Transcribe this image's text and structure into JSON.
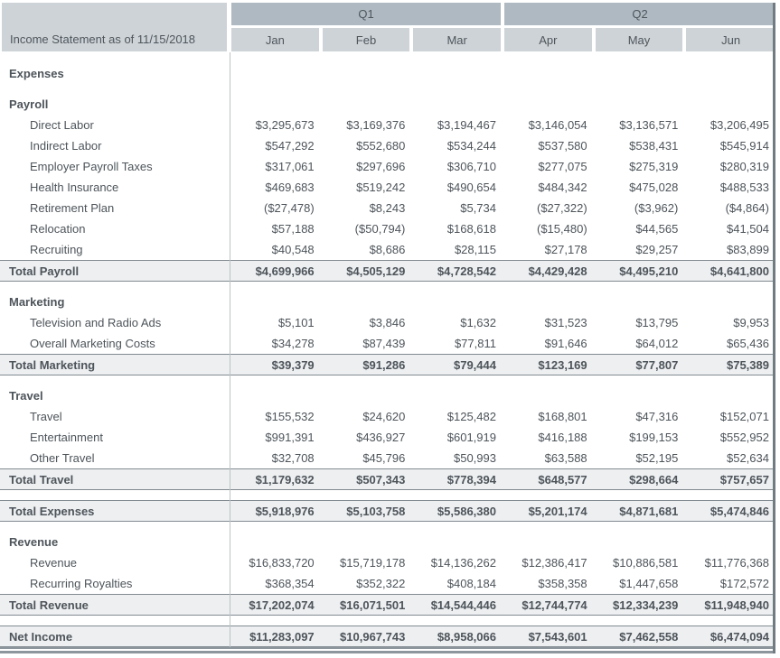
{
  "table": {
    "corner_label": "Income Statement as of 11/15/2018",
    "quarters": [
      {
        "label": "Q1"
      },
      {
        "label": "Q2"
      }
    ],
    "months": [
      "Jan",
      "Feb",
      "Mar",
      "Apr",
      "May",
      "Jun"
    ],
    "rows": [
      {
        "type": "section",
        "label": "Expenses"
      },
      {
        "type": "gap"
      },
      {
        "type": "section",
        "label": "Payroll"
      },
      {
        "type": "item",
        "label": "Direct Labor",
        "values": [
          "$3,295,673",
          "$3,169,376",
          "$3,194,467",
          "$3,146,054",
          "$3,136,571",
          "$3,206,495"
        ]
      },
      {
        "type": "item",
        "label": "Indirect Labor",
        "values": [
          "$547,292",
          "$552,680",
          "$534,244",
          "$537,580",
          "$538,431",
          "$545,914"
        ]
      },
      {
        "type": "item",
        "label": "Employer Payroll Taxes",
        "values": [
          "$317,061",
          "$297,696",
          "$306,710",
          "$277,075",
          "$275,319",
          "$280,319"
        ]
      },
      {
        "type": "item",
        "label": "Health Insurance",
        "values": [
          "$469,683",
          "$519,242",
          "$490,654",
          "$484,342",
          "$475,028",
          "$488,533"
        ]
      },
      {
        "type": "item",
        "label": "Retirement Plan",
        "values": [
          "($27,478)",
          "$8,243",
          "$5,734",
          "($27,322)",
          "($3,962)",
          "($4,864)"
        ]
      },
      {
        "type": "item",
        "label": "Relocation",
        "values": [
          "$57,188",
          "($50,794)",
          "$168,618",
          "($15,480)",
          "$44,565",
          "$41,504"
        ]
      },
      {
        "type": "item",
        "label": "Recruiting",
        "values": [
          "$40,548",
          "$8,686",
          "$28,115",
          "$27,178",
          "$29,257",
          "$83,899"
        ]
      },
      {
        "type": "total",
        "label": "Total Payroll",
        "values": [
          "$4,699,966",
          "$4,505,129",
          "$4,728,542",
          "$4,429,428",
          "$4,495,210",
          "$4,641,800"
        ]
      },
      {
        "type": "gap"
      },
      {
        "type": "section",
        "label": "Marketing"
      },
      {
        "type": "item",
        "label": "Television and Radio Ads",
        "values": [
          "$5,101",
          "$3,846",
          "$1,632",
          "$31,523",
          "$13,795",
          "$9,953"
        ]
      },
      {
        "type": "item",
        "label": "Overall Marketing Costs",
        "values": [
          "$34,278",
          "$87,439",
          "$77,811",
          "$91,646",
          "$64,012",
          "$65,436"
        ]
      },
      {
        "type": "total",
        "label": "Total Marketing",
        "values": [
          "$39,379",
          "$91,286",
          "$79,444",
          "$123,169",
          "$77,807",
          "$75,389"
        ]
      },
      {
        "type": "gap"
      },
      {
        "type": "section",
        "label": "Travel"
      },
      {
        "type": "item",
        "label": "Travel",
        "values": [
          "$155,532",
          "$24,620",
          "$125,482",
          "$168,801",
          "$47,316",
          "$152,071"
        ]
      },
      {
        "type": "item",
        "label": "Entertainment",
        "values": [
          "$991,391",
          "$436,927",
          "$601,919",
          "$416,188",
          "$199,153",
          "$552,952"
        ]
      },
      {
        "type": "item",
        "label": "Other Travel",
        "values": [
          "$32,708",
          "$45,796",
          "$50,993",
          "$63,588",
          "$52,195",
          "$52,634"
        ]
      },
      {
        "type": "total",
        "label": "Total Travel",
        "values": [
          "$1,179,632",
          "$507,343",
          "$778,394",
          "$648,577",
          "$298,664",
          "$757,657"
        ]
      },
      {
        "type": "gap"
      },
      {
        "type": "total",
        "label": "Total Expenses",
        "values": [
          "$5,918,976",
          "$5,103,758",
          "$5,586,380",
          "$5,201,174",
          "$4,871,681",
          "$5,474,846"
        ]
      },
      {
        "type": "gap"
      },
      {
        "type": "section",
        "label": "Revenue"
      },
      {
        "type": "item",
        "label": "Revenue",
        "values": [
          "$16,833,720",
          "$15,719,178",
          "$14,136,262",
          "$12,386,417",
          "$10,886,581",
          "$11,776,368"
        ]
      },
      {
        "type": "item",
        "label": "Recurring Royalties",
        "values": [
          "$368,354",
          "$352,322",
          "$408,184",
          "$358,358",
          "$1,447,658",
          "$172,572"
        ]
      },
      {
        "type": "total",
        "label": "Total Revenue",
        "values": [
          "$17,202,074",
          "$16,071,501",
          "$14,544,446",
          "$12,744,774",
          "$12,334,239",
          "$11,948,940"
        ]
      },
      {
        "type": "gap"
      },
      {
        "type": "total",
        "label": "Net Income",
        "values": [
          "$11,283,097",
          "$10,967,743",
          "$8,958,066",
          "$7,543,601",
          "$7,462,558",
          "$6,474,094"
        ]
      }
    ]
  },
  "colors": {
    "quarter_header_bg": "#aeb9c1",
    "month_header_bg": "#cdd3d7",
    "total_row_bg": "#edeff1",
    "rule": "#8d969c",
    "text": "#4d545a"
  }
}
